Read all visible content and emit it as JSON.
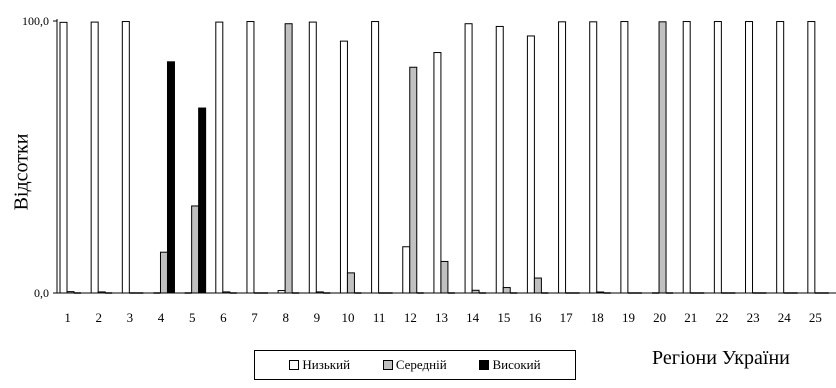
{
  "chart_data": {
    "type": "bar",
    "categories": [
      "1",
      "2",
      "3",
      "4",
      "5",
      "6",
      "7",
      "8",
      "9",
      "10",
      "11",
      "12",
      "13",
      "14",
      "15",
      "16",
      "17",
      "18",
      "19",
      "20",
      "21",
      "22",
      "23",
      "24",
      "25"
    ],
    "series": [
      {
        "name": "Низький",
        "color": "#ffffff",
        "values": [
          99.5,
          99.6,
          99.8,
          0,
          0,
          99.6,
          99.8,
          0.9,
          99.6,
          92.6,
          99.8,
          17.0,
          88.4,
          99.0,
          98.0,
          94.5,
          99.7,
          99.7,
          99.8,
          0,
          99.8,
          99.8,
          99.8,
          99.8,
          99.8
        ]
      },
      {
        "name": "Середній",
        "color": "#c0c0c0",
        "values": [
          0.5,
          0.4,
          0,
          15.0,
          32.0,
          0.4,
          0,
          99.0,
          0.4,
          7.4,
          0,
          83.0,
          11.6,
          1.0,
          2.0,
          5.5,
          0,
          0.3,
          0,
          99.7,
          0,
          0,
          0,
          0,
          0
        ]
      },
      {
        "name": "Високий",
        "color": "#000000",
        "values": [
          0,
          0,
          0,
          85.0,
          68.0,
          0,
          0,
          0,
          0,
          0,
          0,
          0,
          0,
          0,
          0,
          0,
          0,
          0,
          0,
          0,
          0,
          0,
          0,
          0,
          0
        ]
      }
    ],
    "yticks": [
      "100,0",
      "0,0"
    ],
    "ylim": [
      0,
      100
    ],
    "ylabel": "Відсотки",
    "xlabel": "Регіони України",
    "legend_position": "bottom",
    "grid": false
  }
}
